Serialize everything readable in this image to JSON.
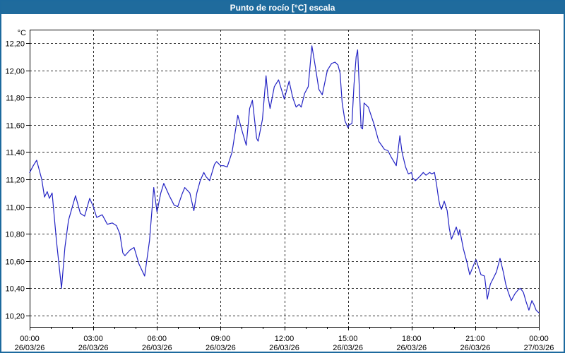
{
  "window": {
    "title": "Punto de rocío [°C] escala"
  },
  "colors": {
    "titlebar": "#1f6b9d",
    "window_border": "#1d6a9e",
    "title_text": "#ffffff",
    "plot_border": "#000000",
    "grid": "#2e2e2e",
    "line": "#2323c4",
    "label_text": "#000000",
    "background": "#ffffff"
  },
  "chart_data": {
    "type": "line",
    "title": "Punto de rocío [°C] escala",
    "unit_label": "°C",
    "xlabel": "",
    "ylabel": "°C",
    "grid": "dashed",
    "legend": "none",
    "ylim": [
      10.11,
      12.3
    ],
    "x_hours_range": [
      0,
      24
    ],
    "y_ticks": [
      {
        "value": 12.2,
        "label": "12,20"
      },
      {
        "value": 12.0,
        "label": "12,00"
      },
      {
        "value": 11.8,
        "label": "11,80"
      },
      {
        "value": 11.6,
        "label": "11,60"
      },
      {
        "value": 11.4,
        "label": "11,40"
      },
      {
        "value": 11.2,
        "label": "11,20"
      },
      {
        "value": 11.0,
        "label": "11,00"
      },
      {
        "value": 10.8,
        "label": "10,80"
      },
      {
        "value": 10.6,
        "label": "10,60"
      },
      {
        "value": 10.4,
        "label": "10,40"
      },
      {
        "value": 10.2,
        "label": "10,20"
      }
    ],
    "x_ticks": [
      {
        "hour": 0,
        "time": "00:00",
        "date": "26/03/26"
      },
      {
        "hour": 3,
        "time": "03:00",
        "date": "26/03/26"
      },
      {
        "hour": 6,
        "time": "06:00",
        "date": "26/03/26"
      },
      {
        "hour": 9,
        "time": "09:00",
        "date": "26/03/26"
      },
      {
        "hour": 12,
        "time": "12:00",
        "date": "26/03/26"
      },
      {
        "hour": 15,
        "time": "15:00",
        "date": "26/03/26"
      },
      {
        "hour": 18,
        "time": "18:00",
        "date": "26/03/26"
      },
      {
        "hour": 21,
        "time": "21:00",
        "date": "26/03/26"
      },
      {
        "hour": 24,
        "time": "00:00",
        "date": "27/03/26"
      }
    ],
    "minor_x_tick_every_hours": 1,
    "series": [
      {
        "name": "Punto de rocío",
        "color": "#2323c4",
        "points": [
          [
            0.0,
            11.25
          ],
          [
            0.17,
            11.3
          ],
          [
            0.33,
            11.34
          ],
          [
            0.57,
            11.2
          ],
          [
            0.7,
            11.07
          ],
          [
            0.83,
            11.11
          ],
          [
            0.93,
            11.06
          ],
          [
            1.06,
            11.1
          ],
          [
            1.26,
            10.75
          ],
          [
            1.5,
            10.4
          ],
          [
            1.66,
            10.7
          ],
          [
            1.83,
            10.9
          ],
          [
            2.16,
            11.08
          ],
          [
            2.39,
            10.95
          ],
          [
            2.59,
            10.93
          ],
          [
            2.83,
            11.06
          ],
          [
            3.0,
            11.0
          ],
          [
            3.16,
            10.92
          ],
          [
            3.42,
            10.94
          ],
          [
            3.66,
            10.87
          ],
          [
            3.89,
            10.88
          ],
          [
            4.09,
            10.86
          ],
          [
            4.25,
            10.8
          ],
          [
            4.39,
            10.66
          ],
          [
            4.49,
            10.64
          ],
          [
            4.72,
            10.68
          ],
          [
            4.92,
            10.7
          ],
          [
            5.15,
            10.58
          ],
          [
            5.42,
            10.49
          ],
          [
            5.65,
            10.75
          ],
          [
            5.85,
            11.14
          ],
          [
            6.0,
            10.96
          ],
          [
            6.18,
            11.1
          ],
          [
            6.32,
            11.17
          ],
          [
            6.58,
            11.08
          ],
          [
            6.81,
            11.01
          ],
          [
            6.98,
            11.0
          ],
          [
            7.18,
            11.09
          ],
          [
            7.31,
            11.14
          ],
          [
            7.55,
            11.1
          ],
          [
            7.74,
            10.97
          ],
          [
            7.88,
            11.1
          ],
          [
            8.04,
            11.19
          ],
          [
            8.21,
            11.25
          ],
          [
            8.31,
            11.22
          ],
          [
            8.48,
            11.19
          ],
          [
            8.71,
            11.31
          ],
          [
            8.81,
            11.33
          ],
          [
            9.0,
            11.3
          ],
          [
            9.14,
            11.3
          ],
          [
            9.31,
            11.29
          ],
          [
            9.54,
            11.4
          ],
          [
            9.81,
            11.67
          ],
          [
            10.04,
            11.54
          ],
          [
            10.21,
            11.45
          ],
          [
            10.37,
            11.72
          ],
          [
            10.5,
            11.78
          ],
          [
            10.7,
            11.5
          ],
          [
            10.77,
            11.48
          ],
          [
            10.97,
            11.64
          ],
          [
            11.14,
            11.96
          ],
          [
            11.23,
            11.81
          ],
          [
            11.33,
            11.72
          ],
          [
            11.53,
            11.88
          ],
          [
            11.73,
            11.93
          ],
          [
            12.0,
            11.79
          ],
          [
            12.23,
            11.92
          ],
          [
            12.4,
            11.8
          ],
          [
            12.56,
            11.73
          ],
          [
            12.7,
            11.75
          ],
          [
            12.8,
            11.73
          ],
          [
            12.96,
            11.83
          ],
          [
            13.13,
            11.88
          ],
          [
            13.3,
            12.18
          ],
          [
            13.46,
            12.03
          ],
          [
            13.63,
            11.86
          ],
          [
            13.79,
            11.82
          ],
          [
            14.03,
            12.0
          ],
          [
            14.23,
            12.05
          ],
          [
            14.39,
            12.06
          ],
          [
            14.53,
            12.04
          ],
          [
            14.63,
            11.98
          ],
          [
            14.73,
            11.76
          ],
          [
            14.86,
            11.63
          ],
          [
            15.0,
            11.58
          ],
          [
            15.06,
            11.6
          ],
          [
            15.19,
            11.61
          ],
          [
            15.29,
            11.9
          ],
          [
            15.39,
            12.1
          ],
          [
            15.46,
            12.15
          ],
          [
            15.56,
            11.8
          ],
          [
            15.62,
            11.58
          ],
          [
            15.69,
            11.57
          ],
          [
            15.76,
            11.76
          ],
          [
            15.96,
            11.73
          ],
          [
            16.22,
            11.61
          ],
          [
            16.45,
            11.48
          ],
          [
            16.72,
            11.42
          ],
          [
            16.89,
            11.41
          ],
          [
            17.05,
            11.36
          ],
          [
            17.28,
            11.3
          ],
          [
            17.45,
            11.52
          ],
          [
            17.55,
            11.4
          ],
          [
            17.72,
            11.29
          ],
          [
            17.85,
            11.24
          ],
          [
            18.0,
            11.25
          ],
          [
            18.05,
            11.21
          ],
          [
            18.18,
            11.19
          ],
          [
            18.38,
            11.22
          ],
          [
            18.55,
            11.25
          ],
          [
            18.68,
            11.23
          ],
          [
            18.85,
            11.25
          ],
          [
            18.95,
            11.24
          ],
          [
            19.08,
            11.25
          ],
          [
            19.18,
            11.16
          ],
          [
            19.28,
            11.05
          ],
          [
            19.35,
            11.0
          ],
          [
            19.41,
            10.98
          ],
          [
            19.54,
            11.04
          ],
          [
            19.68,
            10.97
          ],
          [
            19.78,
            10.84
          ],
          [
            19.88,
            10.76
          ],
          [
            20.11,
            10.85
          ],
          [
            20.21,
            10.79
          ],
          [
            20.27,
            10.83
          ],
          [
            20.44,
            10.69
          ],
          [
            20.61,
            10.59
          ],
          [
            20.74,
            10.5
          ],
          [
            21.0,
            10.6
          ],
          [
            21.04,
            10.61
          ],
          [
            21.27,
            10.5
          ],
          [
            21.44,
            10.49
          ],
          [
            21.57,
            10.32
          ],
          [
            21.71,
            10.43
          ],
          [
            21.84,
            10.47
          ],
          [
            22.0,
            10.52
          ],
          [
            22.17,
            10.62
          ],
          [
            22.34,
            10.51
          ],
          [
            22.44,
            10.43
          ],
          [
            22.54,
            10.38
          ],
          [
            22.7,
            10.31
          ],
          [
            22.87,
            10.36
          ],
          [
            23.03,
            10.39
          ],
          [
            23.13,
            10.4
          ],
          [
            23.27,
            10.37
          ],
          [
            23.4,
            10.3
          ],
          [
            23.53,
            10.24
          ],
          [
            23.67,
            10.31
          ],
          [
            23.77,
            10.28
          ],
          [
            23.87,
            10.24
          ],
          [
            24.0,
            10.22
          ]
        ]
      }
    ]
  }
}
